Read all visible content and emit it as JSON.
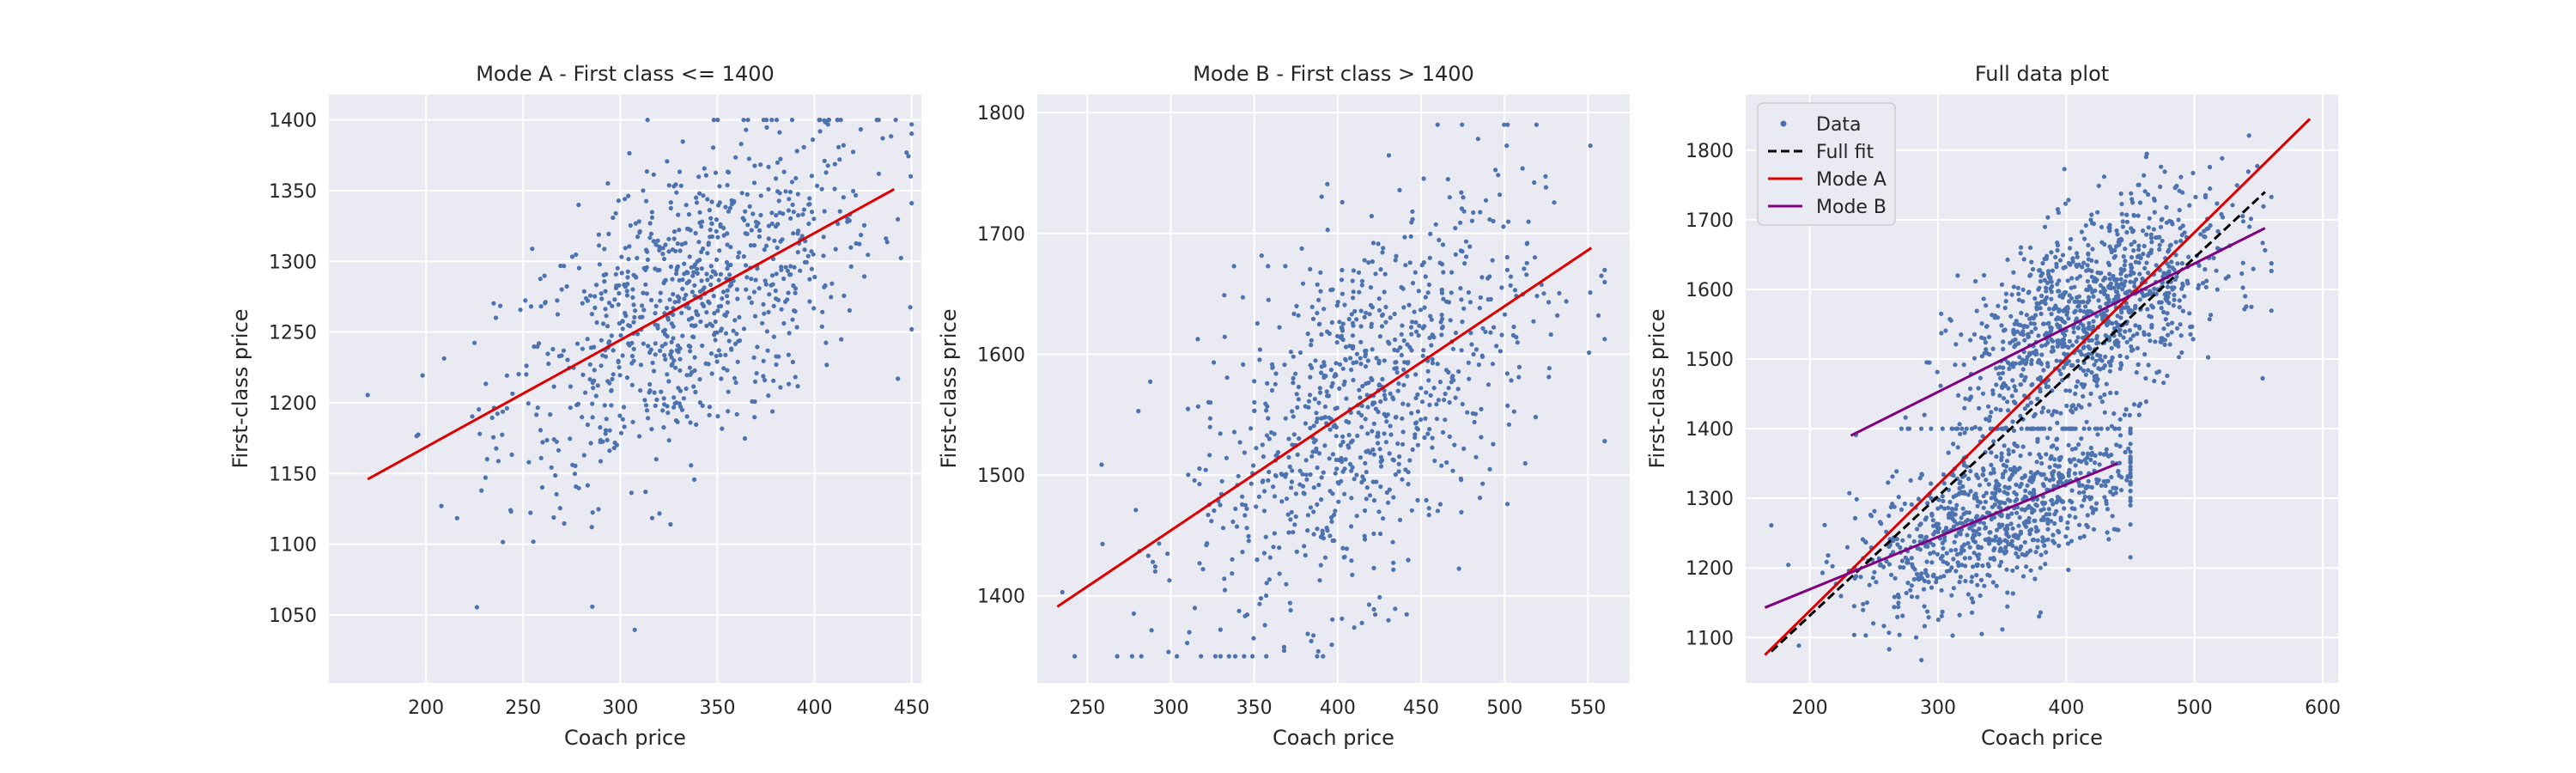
{
  "colors": {
    "axes_bg": "#eaeaf2",
    "grid": "#ffffff",
    "points": "#4c72b0",
    "mode_a_line": "#dd0000",
    "mode_b_line": "#800080",
    "full_fit_line": "#000000",
    "text": "#262626"
  },
  "chart_data": [
    {
      "type": "scatter",
      "title": "Mode A - First class <= 1400",
      "xlabel": "Coach price",
      "ylabel": "First-class price",
      "xlim": [
        150,
        455
      ],
      "ylim": [
        1002,
        1418
      ],
      "xticks": [
        200,
        250,
        300,
        350,
        400,
        450
      ],
      "yticks": [
        1050,
        1100,
        1150,
        1200,
        1250,
        1300,
        1350,
        1400
      ],
      "grid": true,
      "legend": null,
      "points": {
        "n": 900,
        "x_mean": 335,
        "x_sd": 48,
        "x_range": [
          170,
          450
        ],
        "slope": 0.75,
        "intercept": 1018,
        "y_sd": 52,
        "y_range": [
          1020,
          1400
        ]
      },
      "lines": [
        {
          "name": "",
          "color_key": "mode_a_line",
          "dash": "",
          "x": [
            170,
            441
          ],
          "y": [
            1146,
            1351
          ]
        }
      ]
    },
    {
      "type": "scatter",
      "title": "Mode B - First class > 1400",
      "xlabel": "Coach price",
      "ylabel": "First-class price",
      "xlim": [
        220,
        575
      ],
      "ylim": [
        1328,
        1815
      ],
      "xticks": [
        250,
        300,
        350,
        400,
        450,
        500,
        550
      ],
      "yticks": [
        1400,
        1500,
        1600,
        1700,
        1800
      ],
      "grid": true,
      "legend": null,
      "points": {
        "n": 900,
        "x_mean": 415,
        "x_sd": 52,
        "x_range": [
          235,
          560
        ],
        "slope": 0.92,
        "intercept": 1175,
        "y_sd": 75,
        "y_range": [
          1350,
          1790
        ]
      },
      "lines": [
        {
          "name": "",
          "color_key": "mode_a_line",
          "dash": "",
          "x": [
            232,
            552
          ],
          "y": [
            1391,
            1688
          ]
        }
      ]
    },
    {
      "type": "scatter",
      "title": "Full data plot",
      "xlabel": "Coach price",
      "ylabel": "First-class price",
      "xlim": [
        150,
        612
      ],
      "ylim": [
        1035,
        1880
      ],
      "xticks": [
        200,
        300,
        400,
        500,
        600
      ],
      "yticks": [
        1100,
        1200,
        1300,
        1400,
        1500,
        1600,
        1700,
        1800
      ],
      "grid": true,
      "legend": {
        "position": "upper left",
        "entries": [
          {
            "label": "Data",
            "kind": "marker",
            "color_key": "points"
          },
          {
            "label": "Full fit",
            "kind": "line",
            "color_key": "full_fit_line",
            "dash": "10,5"
          },
          {
            "label": "Mode A",
            "kind": "line",
            "color_key": "mode_a_line",
            "dash": ""
          },
          {
            "label": "Mode B",
            "kind": "line",
            "color_key": "mode_b_line",
            "dash": ""
          }
        ]
      },
      "point_groups": [
        {
          "n": 900,
          "x_mean": 345,
          "x_sd": 55,
          "x_range": [
            170,
            450
          ],
          "slope": 0.75,
          "intercept": 1018,
          "y_sd": 55,
          "y_range": [
            1060,
            1400
          ]
        },
        {
          "n": 1100,
          "x_mean": 420,
          "x_sd": 52,
          "x_range": [
            175,
            560
          ],
          "slope": 0.92,
          "intercept": 1175,
          "y_sd": 70,
          "y_range": [
            1400,
            1830
          ]
        }
      ],
      "lines": [
        {
          "name": "Full fit",
          "color_key": "full_fit_line",
          "dash": "10,5",
          "x": [
            170,
            555
          ],
          "y": [
            1080,
            1740
          ]
        },
        {
          "name": "Mode A",
          "color_key": "mode_a_line",
          "dash": "",
          "x": [
            165,
            590
          ],
          "y": [
            1075,
            1845
          ]
        },
        {
          "name": "Mode B",
          "color_key": "mode_b_line",
          "dash": "",
          "x": [
            232,
            555
          ],
          "y": [
            1390,
            1688
          ]
        },
        {
          "name": "Mode B",
          "color_key": "mode_b_line",
          "dash": "",
          "x": [
            165,
            440
          ],
          "y": [
            1143,
            1350
          ]
        }
      ]
    }
  ]
}
